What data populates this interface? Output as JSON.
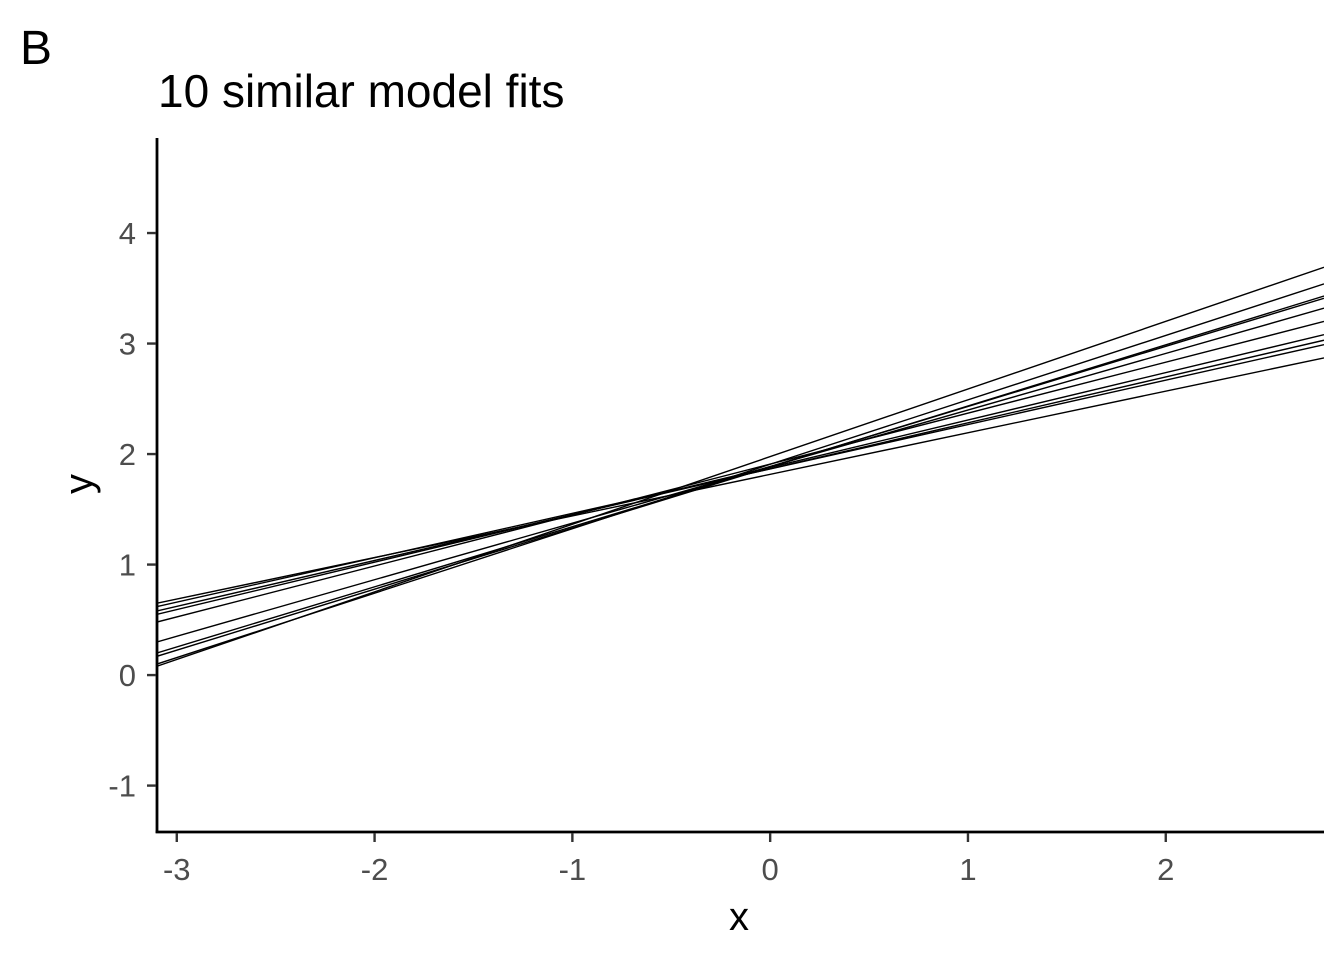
{
  "panel_tag": "B",
  "chart_data": {
    "type": "line",
    "title": "10 similar model fits",
    "xlabel": "x",
    "ylabel": "y",
    "xlim": [
      -3.1,
      2.8
    ],
    "ylim": [
      -1.42,
      4.86
    ],
    "x_ticks": [
      -3,
      -2,
      -1,
      0,
      1,
      2
    ],
    "y_ticks": [
      -1,
      0,
      1,
      2,
      3,
      4
    ],
    "x_tick_labels": [
      "-3",
      "-2",
      "-1",
      "0",
      "1",
      "2"
    ],
    "y_tick_labels": [
      "-1",
      "0",
      "1",
      "2",
      "3",
      "4"
    ],
    "grid": false,
    "legend": "none",
    "line_color": "#000000",
    "series": [
      {
        "x": [
          -3.1,
          2.8
        ],
        "y": [
          0.08,
          3.69
        ]
      },
      {
        "x": [
          -3.1,
          2.8
        ],
        "y": [
          0.1,
          3.54
        ]
      },
      {
        "x": [
          -3.1,
          2.8
        ],
        "y": [
          0.17,
          3.43
        ]
      },
      {
        "x": [
          -3.1,
          2.8
        ],
        "y": [
          0.2,
          3.41
        ]
      },
      {
        "x": [
          -3.1,
          2.8
        ],
        "y": [
          0.3,
          3.32
        ]
      },
      {
        "x": [
          -3.1,
          2.8
        ],
        "y": [
          0.48,
          3.2
        ]
      },
      {
        "x": [
          -3.1,
          2.8
        ],
        "y": [
          0.55,
          3.08
        ]
      },
      {
        "x": [
          -3.1,
          2.8
        ],
        "y": [
          0.58,
          3.03
        ]
      },
      {
        "x": [
          -3.1,
          2.8
        ],
        "y": [
          0.62,
          2.99
        ]
      },
      {
        "x": [
          -3.1,
          2.8
        ],
        "y": [
          0.65,
          2.87
        ]
      }
    ]
  }
}
